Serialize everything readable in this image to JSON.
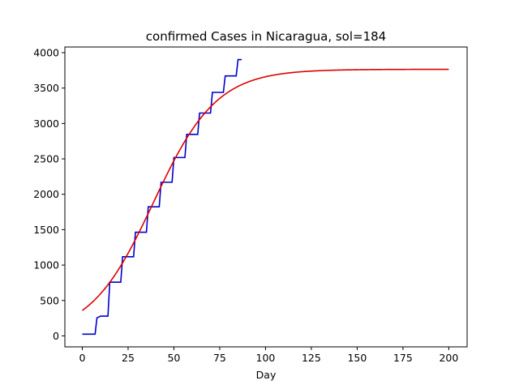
{
  "chart_data": {
    "type": "line",
    "title": "confirmed Cases in Nicaragua, sol=184",
    "xlabel": "Day",
    "ylabel": "",
    "xlim": [
      -9.5,
      210
    ],
    "ylim": [
      -155,
      4080
    ],
    "x_ticks": [
      0,
      25,
      50,
      75,
      100,
      125,
      150,
      175,
      200
    ],
    "y_ticks": [
      0,
      500,
      1000,
      1500,
      2000,
      2500,
      3000,
      3500,
      4000
    ],
    "grid": false,
    "legend": "none",
    "series": [
      {
        "style": "step",
        "color": "#0000cc",
        "points": [
          [
            0,
            25
          ],
          [
            7,
            25
          ],
          [
            8,
            254
          ],
          [
            10,
            279
          ],
          [
            14,
            279
          ],
          [
            15,
            759
          ],
          [
            21,
            759
          ],
          [
            22,
            1118
          ],
          [
            28,
            1118
          ],
          [
            29,
            1464
          ],
          [
            35,
            1464
          ],
          [
            36,
            1823
          ],
          [
            42,
            1823
          ],
          [
            43,
            2170
          ],
          [
            49,
            2170
          ],
          [
            50,
            2519
          ],
          [
            56,
            2519
          ],
          [
            57,
            2846
          ],
          [
            63,
            2846
          ],
          [
            64,
            3147
          ],
          [
            70,
            3147
          ],
          [
            71,
            3439
          ],
          [
            77,
            3439
          ],
          [
            78,
            3672
          ],
          [
            84,
            3672
          ],
          [
            85,
            3902
          ],
          [
            87,
            3902
          ]
        ]
      },
      {
        "style": "logistic",
        "color": "#dd0000",
        "K": 3765,
        "r": 0.058,
        "t0": 38.8,
        "x_range": [
          0,
          200
        ]
      }
    ]
  }
}
